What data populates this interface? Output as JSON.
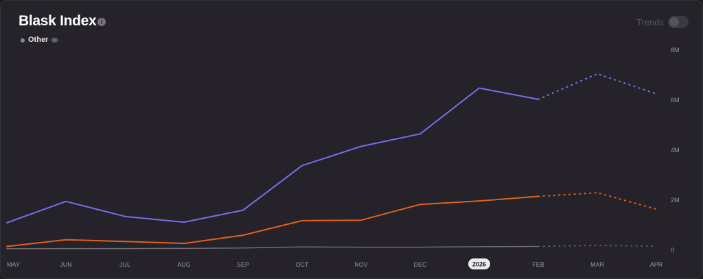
{
  "header": {
    "title": "Blask Index",
    "info_icon": "info-icon",
    "trends_label": "Trends",
    "trends_on": false
  },
  "legend": [
    {
      "label": "Other",
      "icon": "eye-icon",
      "color": "#8b8893"
    }
  ],
  "chart_data": {
    "type": "line",
    "categories": [
      "MAY",
      "JUN",
      "JUL",
      "AUG",
      "SEP",
      "OCT",
      "NOV",
      "DEC",
      "2026",
      "FEB",
      "MAR",
      "APR"
    ],
    "highlighted_category": "2026",
    "y_ticks": [
      "0",
      "2M",
      "4M",
      "6M",
      "8M"
    ],
    "ylim": [
      0,
      8000000
    ],
    "y_axis_position": "right",
    "forecast_from_index": 9,
    "series": [
      {
        "color": "#7b6cf0",
        "values": [
          1100000,
          1950000,
          1350000,
          1120000,
          1600000,
          3380000,
          4150000,
          4650000,
          6480000,
          6030000,
          7050000,
          6250000
        ]
      },
      {
        "color": "#e2601a",
        "values": [
          150000,
          420000,
          350000,
          270000,
          600000,
          1180000,
          1200000,
          1830000,
          1970000,
          2150000,
          2300000,
          1640000
        ]
      },
      {
        "name": "Other",
        "color": "#6e6b74",
        "values": [
          60000,
          65000,
          65000,
          70000,
          90000,
          130000,
          120000,
          120000,
          140000,
          150000,
          190000,
          160000
        ]
      }
    ]
  }
}
